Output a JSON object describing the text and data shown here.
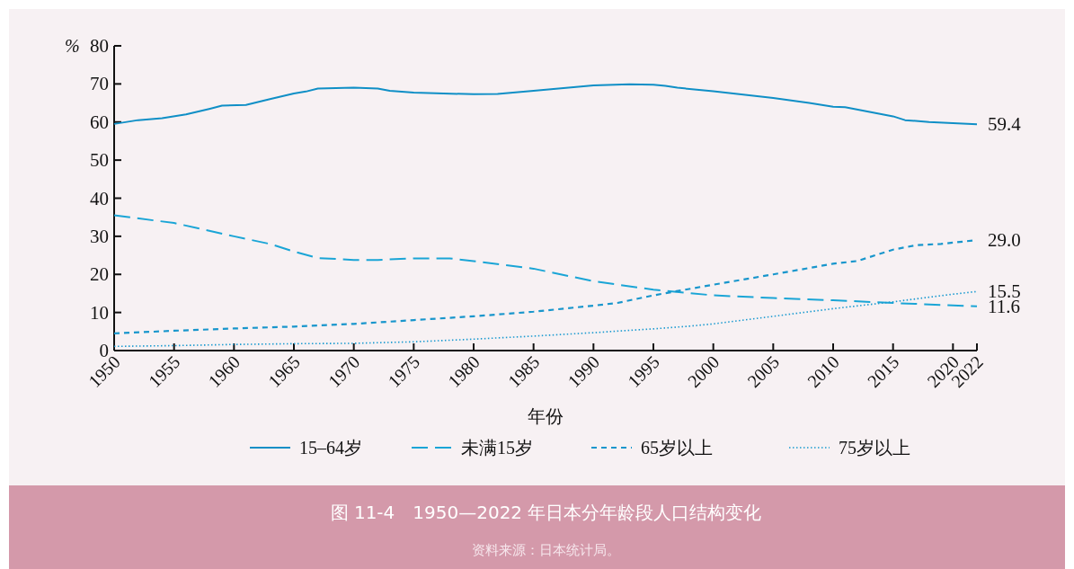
{
  "chart_data": {
    "type": "line",
    "title": "图 11-4　1950—2022 年日本分年龄段人口结构变化",
    "xlabel": "年份",
    "ylabel": "%",
    "annotations": [
      "资料来源：日本统计局。"
    ],
    "xlim": [
      1950,
      2022
    ],
    "ylim": [
      0,
      80
    ],
    "xticks": [
      1950,
      1955,
      1960,
      1965,
      1970,
      1975,
      1980,
      1985,
      1990,
      1995,
      2000,
      2005,
      2010,
      2015,
      2020,
      2022
    ],
    "yticks": [
      0,
      10,
      20,
      30,
      40,
      50,
      60,
      70,
      80
    ],
    "grid": false,
    "legend": "bottom",
    "marker": "none",
    "series": [
      {
        "name": "15–64岁",
        "color": "#0f8fc6",
        "line_style": "solid",
        "x": [
          1950,
          1952,
          1954,
          1956,
          1958,
          1959,
          1961,
          1963,
          1965,
          1966,
          1967,
          1970,
          1972,
          1973,
          1975,
          1980,
          1982,
          1985,
          1990,
          1993,
          1995,
          1996,
          1997,
          2000,
          2005,
          2008,
          2010,
          2011,
          2015,
          2016,
          2018,
          2022
        ],
        "values": [
          59.5,
          60.5,
          61,
          62,
          63.5,
          64.3,
          64.5,
          66,
          67.5,
          68,
          68.8,
          69,
          68.8,
          68.2,
          67.7,
          67.3,
          67.4,
          68.2,
          69.6,
          69.9,
          69.8,
          69.5,
          69,
          68.1,
          66.3,
          65,
          64,
          63.9,
          61.5,
          60.5,
          60,
          59.4
        ],
        "value_labels": [
          null,
          null,
          null,
          null,
          null,
          null,
          null,
          null,
          null,
          null,
          null,
          null,
          null,
          null,
          null,
          null,
          null,
          null,
          null,
          null,
          null,
          null,
          null,
          null,
          null,
          null,
          null,
          null,
          null,
          null,
          null,
          "59.4"
        ]
      },
      {
        "name": "未满15岁",
        "color": "#1aa5d6",
        "line_style": "long-dashed",
        "x": [
          1950,
          1955,
          1960,
          1963,
          1965,
          1967,
          1970,
          1972,
          1975,
          1978,
          1980,
          1985,
          1990,
          1995,
          2000,
          2005,
          2010,
          2015,
          2022
        ],
        "values": [
          35.5,
          33.5,
          30,
          28,
          26,
          24.3,
          23.8,
          23.8,
          24.2,
          24.2,
          23.5,
          21.5,
          18.2,
          16,
          14.5,
          13.8,
          13.2,
          12.5,
          11.6
        ],
        "value_labels": [
          null,
          null,
          null,
          null,
          null,
          null,
          null,
          null,
          null,
          null,
          null,
          null,
          null,
          null,
          null,
          null,
          null,
          null,
          "11.6"
        ]
      },
      {
        "name": "65岁以上",
        "color": "#1896cc",
        "line_style": "dashed",
        "x": [
          1950,
          1955,
          1960,
          1965,
          1970,
          1975,
          1980,
          1985,
          1990,
          1992,
          1995,
          2000,
          2005,
          2010,
          2012,
          2015,
          2017,
          2019,
          2022
        ],
        "values": [
          4.5,
          5.2,
          5.8,
          6.3,
          7.0,
          8.0,
          9.0,
          10.2,
          11.8,
          12.5,
          14.5,
          17.3,
          20,
          22.8,
          23.5,
          26.5,
          27.7,
          28,
          29.0
        ],
        "value_labels": [
          null,
          null,
          null,
          null,
          null,
          null,
          null,
          null,
          null,
          null,
          null,
          null,
          null,
          null,
          null,
          null,
          null,
          null,
          "29.0"
        ]
      },
      {
        "name": "75岁以上",
        "color": "#1a9ad0",
        "line_style": "dotted",
        "x": [
          1950,
          1955,
          1960,
          1965,
          1970,
          1975,
          1980,
          1985,
          1990,
          1995,
          1998,
          2000,
          2005,
          2010,
          2015,
          2020,
          2022
        ],
        "values": [
          1.1,
          1.3,
          1.6,
          1.8,
          1.9,
          2.3,
          3.0,
          3.8,
          4.7,
          5.7,
          6.4,
          7,
          9,
          11,
          12.8,
          14.8,
          15.5
        ],
        "value_labels": [
          null,
          null,
          null,
          null,
          null,
          null,
          null,
          null,
          null,
          null,
          null,
          null,
          null,
          null,
          null,
          null,
          "15.5"
        ]
      }
    ]
  }
}
